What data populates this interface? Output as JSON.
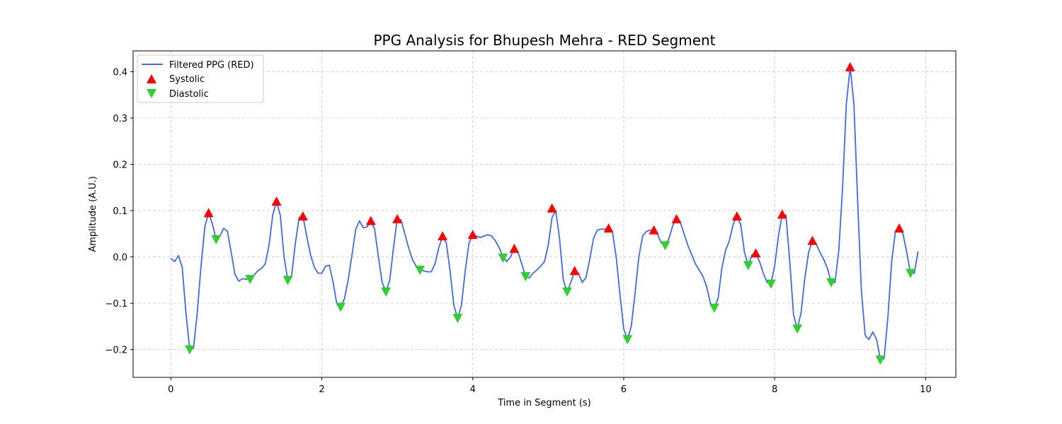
{
  "chart_data": {
    "type": "line",
    "title": "PPG Analysis for Bhupesh Mehra - RED Segment",
    "xlabel": "Time in Segment (s)",
    "ylabel": "Amplitude (A.U.)",
    "xlim": [
      -0.5,
      10.4
    ],
    "ylim": [
      -0.26,
      0.445
    ],
    "x_ticks": [
      0,
      2,
      4,
      6,
      8,
      10
    ],
    "y_ticks": [
      -0.2,
      -0.1,
      0.0,
      0.1,
      0.2,
      0.3,
      0.4
    ],
    "y_tick_labels": [
      "−0.2",
      "−0.1",
      "0.0",
      "0.1",
      "0.2",
      "0.3",
      "0.4"
    ],
    "grid": true,
    "legend_position": "upper-left",
    "series": [
      {
        "name": "Filtered PPG (RED)",
        "kind": "line",
        "color": "#4169e1",
        "points": [
          [
            0.0,
            -0.003
          ],
          [
            0.05,
            -0.01
          ],
          [
            0.1,
            0.003
          ],
          [
            0.15,
            -0.022
          ],
          [
            0.2,
            -0.12
          ],
          [
            0.25,
            -0.2
          ],
          [
            0.3,
            -0.197
          ],
          [
            0.35,
            -0.12
          ],
          [
            0.4,
            -0.02
          ],
          [
            0.45,
            0.065
          ],
          [
            0.5,
            0.095
          ],
          [
            0.55,
            0.072
          ],
          [
            0.6,
            0.038
          ],
          [
            0.65,
            0.045
          ],
          [
            0.7,
            0.062
          ],
          [
            0.75,
            0.055
          ],
          [
            0.8,
            0.01
          ],
          [
            0.85,
            -0.038
          ],
          [
            0.9,
            -0.052
          ],
          [
            0.95,
            -0.047
          ],
          [
            1.0,
            -0.048
          ],
          [
            1.05,
            -0.045
          ],
          [
            1.1,
            -0.04
          ],
          [
            1.15,
            -0.03
          ],
          [
            1.2,
            -0.025
          ],
          [
            1.25,
            -0.015
          ],
          [
            1.3,
            0.025
          ],
          [
            1.35,
            0.09
          ],
          [
            1.4,
            0.12
          ],
          [
            1.45,
            0.09
          ],
          [
            1.5,
            0.0
          ],
          [
            1.55,
            -0.05
          ],
          [
            1.6,
            -0.04
          ],
          [
            1.65,
            0.03
          ],
          [
            1.7,
            0.085
          ],
          [
            1.75,
            0.088
          ],
          [
            1.8,
            0.045
          ],
          [
            1.85,
            0.005
          ],
          [
            1.9,
            -0.022
          ],
          [
            1.95,
            -0.035
          ],
          [
            2.0,
            -0.035
          ],
          [
            2.05,
            -0.02
          ],
          [
            2.1,
            -0.018
          ],
          [
            2.15,
            -0.055
          ],
          [
            2.2,
            -0.102
          ],
          [
            2.25,
            -0.108
          ],
          [
            2.3,
            -0.09
          ],
          [
            2.35,
            -0.05
          ],
          [
            2.4,
            0.005
          ],
          [
            2.45,
            0.06
          ],
          [
            2.5,
            0.078
          ],
          [
            2.55,
            0.063
          ],
          [
            2.6,
            0.065
          ],
          [
            2.65,
            0.078
          ],
          [
            2.7,
            0.06
          ],
          [
            2.75,
            0.0
          ],
          [
            2.8,
            -0.055
          ],
          [
            2.85,
            -0.075
          ],
          [
            2.9,
            -0.05
          ],
          [
            2.95,
            0.02
          ],
          [
            3.0,
            0.082
          ],
          [
            3.05,
            0.08
          ],
          [
            3.1,
            0.05
          ],
          [
            3.15,
            0.02
          ],
          [
            3.2,
            -0.005
          ],
          [
            3.25,
            -0.02
          ],
          [
            3.3,
            -0.028
          ],
          [
            3.35,
            -0.03
          ],
          [
            3.4,
            -0.032
          ],
          [
            3.45,
            -0.032
          ],
          [
            3.5,
            -0.015
          ],
          [
            3.55,
            0.02
          ],
          [
            3.6,
            0.045
          ],
          [
            3.65,
            0.03
          ],
          [
            3.7,
            -0.03
          ],
          [
            3.75,
            -0.105
          ],
          [
            3.8,
            -0.132
          ],
          [
            3.85,
            -0.105
          ],
          [
            3.9,
            -0.03
          ],
          [
            3.95,
            0.03
          ],
          [
            4.0,
            0.048
          ],
          [
            4.05,
            0.045
          ],
          [
            4.1,
            0.042
          ],
          [
            4.15,
            0.045
          ],
          [
            4.2,
            0.048
          ],
          [
            4.25,
            0.045
          ],
          [
            4.3,
            0.035
          ],
          [
            4.35,
            0.02
          ],
          [
            4.4,
            0.0
          ],
          [
            4.45,
            -0.01
          ],
          [
            4.5,
            0.0
          ],
          [
            4.55,
            0.018
          ],
          [
            4.6,
            0.01
          ],
          [
            4.65,
            -0.015
          ],
          [
            4.7,
            -0.042
          ],
          [
            4.75,
            -0.045
          ],
          [
            4.8,
            -0.035
          ],
          [
            4.85,
            -0.028
          ],
          [
            4.9,
            -0.02
          ],
          [
            4.95,
            -0.01
          ],
          [
            5.0,
            0.025
          ],
          [
            5.05,
            0.085
          ],
          [
            5.1,
            0.1
          ],
          [
            5.15,
            0.04
          ],
          [
            5.2,
            -0.05
          ],
          [
            5.25,
            -0.075
          ],
          [
            5.3,
            -0.055
          ],
          [
            5.35,
            -0.03
          ],
          [
            5.4,
            -0.035
          ],
          [
            5.45,
            -0.055
          ],
          [
            5.5,
            -0.045
          ],
          [
            5.55,
            -0.005
          ],
          [
            5.6,
            0.04
          ],
          [
            5.65,
            0.058
          ],
          [
            5.7,
            0.06
          ],
          [
            5.75,
            0.06
          ],
          [
            5.8,
            0.062
          ],
          [
            5.85,
            0.055
          ],
          [
            5.9,
            0.0
          ],
          [
            5.95,
            -0.08
          ],
          [
            6.0,
            -0.155
          ],
          [
            6.05,
            -0.178
          ],
          [
            6.1,
            -0.15
          ],
          [
            6.15,
            -0.08
          ],
          [
            6.2,
            0.0
          ],
          [
            6.25,
            0.045
          ],
          [
            6.3,
            0.055
          ],
          [
            6.35,
            0.058
          ],
          [
            6.4,
            0.058
          ],
          [
            6.45,
            0.048
          ],
          [
            6.5,
            0.03
          ],
          [
            6.55,
            0.025
          ],
          [
            6.6,
            0.04
          ],
          [
            6.65,
            0.068
          ],
          [
            6.7,
            0.082
          ],
          [
            6.75,
            0.075
          ],
          [
            6.8,
            0.05
          ],
          [
            6.85,
            0.025
          ],
          [
            6.9,
            0.005
          ],
          [
            6.95,
            -0.015
          ],
          [
            7.0,
            -0.028
          ],
          [
            7.05,
            -0.042
          ],
          [
            7.1,
            -0.065
          ],
          [
            7.15,
            -0.1
          ],
          [
            7.2,
            -0.11
          ],
          [
            7.25,
            -0.09
          ],
          [
            7.3,
            -0.025
          ],
          [
            7.35,
            0.015
          ],
          [
            7.4,
            0.035
          ],
          [
            7.45,
            0.07
          ],
          [
            7.5,
            0.088
          ],
          [
            7.55,
            0.07
          ],
          [
            7.6,
            0.01
          ],
          [
            7.65,
            -0.018
          ],
          [
            7.7,
            0.005
          ],
          [
            7.75,
            0.008
          ],
          [
            7.8,
            -0.01
          ],
          [
            7.85,
            -0.035
          ],
          [
            7.9,
            -0.055
          ],
          [
            7.95,
            -0.058
          ],
          [
            8.0,
            -0.02
          ],
          [
            8.05,
            0.045
          ],
          [
            8.1,
            0.092
          ],
          [
            8.15,
            0.09
          ],
          [
            8.2,
            -0.01
          ],
          [
            8.25,
            -0.125
          ],
          [
            8.3,
            -0.155
          ],
          [
            8.35,
            -0.12
          ],
          [
            8.4,
            -0.045
          ],
          [
            8.45,
            0.01
          ],
          [
            8.5,
            0.035
          ],
          [
            8.55,
            0.028
          ],
          [
            8.6,
            0.01
          ],
          [
            8.65,
            -0.005
          ],
          [
            8.7,
            -0.025
          ],
          [
            8.75,
            -0.055
          ],
          [
            8.8,
            -0.055
          ],
          [
            8.85,
            0.015
          ],
          [
            8.9,
            0.15
          ],
          [
            8.95,
            0.33
          ],
          [
            9.0,
            0.41
          ],
          [
            9.05,
            0.33
          ],
          [
            9.1,
            0.12
          ],
          [
            9.15,
            -0.075
          ],
          [
            9.2,
            -0.17
          ],
          [
            9.25,
            -0.178
          ],
          [
            9.3,
            -0.162
          ],
          [
            9.35,
            -0.178
          ],
          [
            9.4,
            -0.22
          ],
          [
            9.45,
            -0.22
          ],
          [
            9.5,
            -0.13
          ],
          [
            9.55,
            -0.01
          ],
          [
            9.6,
            0.055
          ],
          [
            9.65,
            0.062
          ],
          [
            9.7,
            0.05
          ],
          [
            9.75,
            0.01
          ],
          [
            9.8,
            -0.035
          ],
          [
            9.85,
            -0.035
          ],
          [
            9.9,
            0.012
          ]
        ]
      },
      {
        "name": "Systolic",
        "kind": "marker-up",
        "color": "#ff0000",
        "points": [
          [
            0.5,
            0.095
          ],
          [
            1.4,
            0.12
          ],
          [
            1.75,
            0.088
          ],
          [
            2.65,
            0.078
          ],
          [
            3.0,
            0.082
          ],
          [
            3.6,
            0.045
          ],
          [
            4.0,
            0.048
          ],
          [
            4.55,
            0.018
          ],
          [
            5.05,
            0.105
          ],
          [
            5.35,
            -0.03
          ],
          [
            5.8,
            0.062
          ],
          [
            6.4,
            0.058
          ],
          [
            6.7,
            0.082
          ],
          [
            7.5,
            0.088
          ],
          [
            7.75,
            0.008
          ],
          [
            8.1,
            0.092
          ],
          [
            8.5,
            0.035
          ],
          [
            9.0,
            0.41
          ],
          [
            9.65,
            0.062
          ]
        ]
      },
      {
        "name": "Diastolic",
        "kind": "marker-down",
        "color": "#32cd32",
        "points": [
          [
            0.25,
            -0.2
          ],
          [
            0.6,
            0.038
          ],
          [
            1.05,
            -0.048
          ],
          [
            1.55,
            -0.05
          ],
          [
            2.25,
            -0.108
          ],
          [
            2.85,
            -0.075
          ],
          [
            3.3,
            -0.028
          ],
          [
            3.8,
            -0.132
          ],
          [
            4.4,
            -0.002
          ],
          [
            4.7,
            -0.042
          ],
          [
            5.25,
            -0.075
          ],
          [
            6.05,
            -0.178
          ],
          [
            6.55,
            0.025
          ],
          [
            7.2,
            -0.11
          ],
          [
            7.65,
            -0.018
          ],
          [
            7.95,
            -0.058
          ],
          [
            8.3,
            -0.155
          ],
          [
            8.75,
            -0.055
          ],
          [
            9.4,
            -0.222
          ],
          [
            9.8,
            -0.035
          ]
        ]
      }
    ]
  }
}
